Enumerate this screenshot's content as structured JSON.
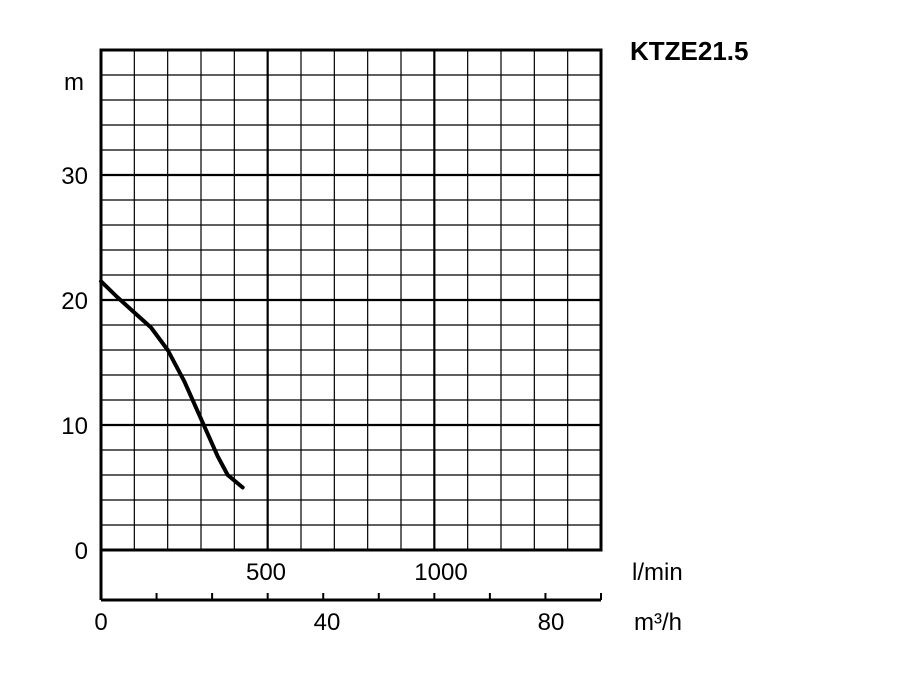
{
  "chart_data": {
    "type": "line",
    "title": "KTZE21.5",
    "ylabel": "m",
    "xlabel_primary": "l/min",
    "xlabel_secondary": "m³/h",
    "ylim": [
      0,
      40
    ],
    "xlim_lmin": [
      0,
      1500
    ],
    "xlim_m3h": [
      0,
      90
    ],
    "y_ticks": [
      "0",
      "10",
      "20",
      "30"
    ],
    "x_ticks_lmin": [
      "500",
      "1000"
    ],
    "x_ticks_m3h": [
      "0",
      "40",
      "80"
    ],
    "grid": true,
    "series": [
      {
        "x": [
          0,
          50,
          100,
          150,
          200,
          250,
          300,
          350,
          380,
          425
        ],
        "y": [
          21.5,
          20.2,
          19.0,
          17.8,
          16.0,
          13.5,
          10.5,
          7.5,
          6.0,
          5.0
        ]
      }
    ]
  }
}
